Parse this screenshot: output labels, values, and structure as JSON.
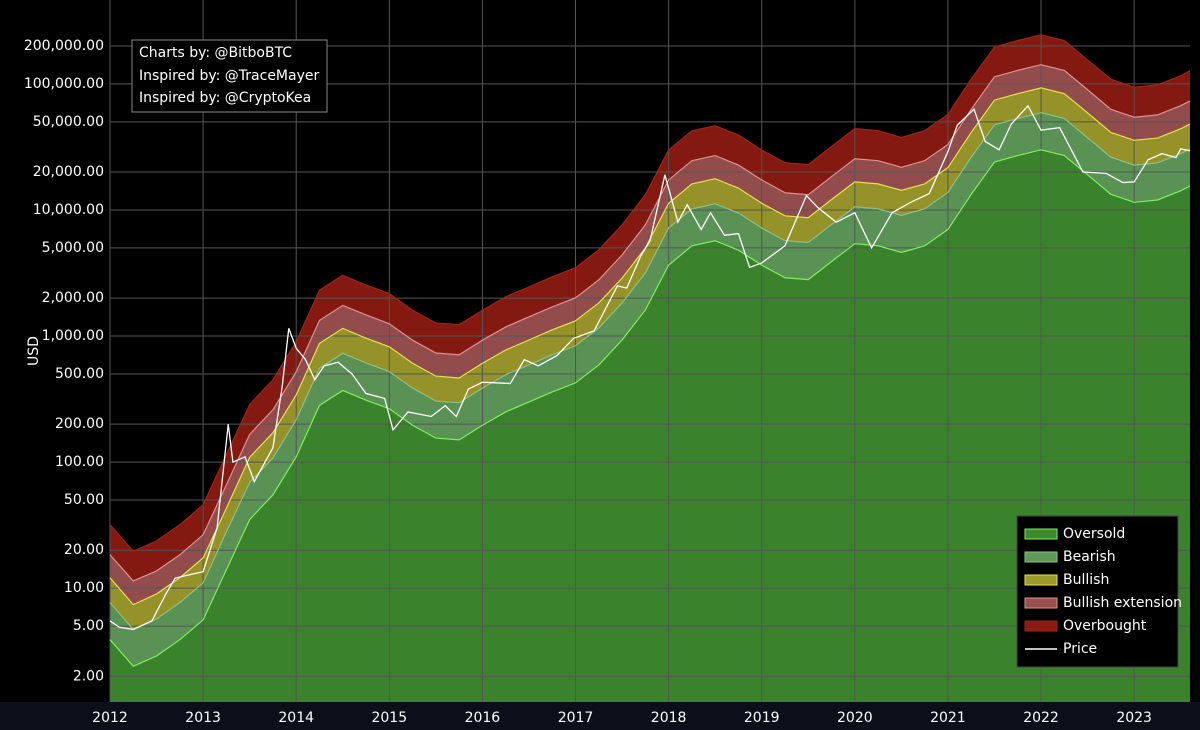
{
  "chart_data": {
    "type": "area",
    "ylabel": "USD",
    "annotations": [
      "Charts by: @BitboBTC",
      "Inspired by: @TraceMayer",
      "Inspired by: @CryptoKea"
    ],
    "log_scale": true,
    "grid": true,
    "legend": "bottom-right",
    "xlim": [
      2012,
      2023.6
    ],
    "xticks": [
      2012,
      2013,
      2014,
      2015,
      2016,
      2017,
      2018,
      2019,
      2020,
      2021,
      2022,
      2023
    ],
    "ylim": [
      1.25,
      463000
    ],
    "yticks": [
      {
        "value": 2,
        "label": "2.00"
      },
      {
        "value": 5,
        "label": "5.00"
      },
      {
        "value": 10,
        "label": "10.00"
      },
      {
        "value": 20,
        "label": "20.00"
      },
      {
        "value": 50,
        "label": "50.00"
      },
      {
        "value": 100,
        "label": "100.00"
      },
      {
        "value": 200,
        "label": "200.00"
      },
      {
        "value": 500,
        "label": "500.00"
      },
      {
        "value": 1000,
        "label": "1,000.00"
      },
      {
        "value": 2000,
        "label": "2,000.00"
      },
      {
        "value": 5000,
        "label": "5,000.00"
      },
      {
        "value": 10000,
        "label": "10,000.00"
      },
      {
        "value": 20000,
        "label": "20,000.00"
      },
      {
        "value": 50000,
        "label": "50,000.00"
      },
      {
        "value": 100000,
        "label": "100,000.00"
      },
      {
        "value": 200000,
        "label": "200,000.00"
      }
    ],
    "x": [
      2012,
      2012.25,
      2012.5,
      2012.75,
      2013,
      2013.25,
      2013.5,
      2013.75,
      2014,
      2014.25,
      2014.5,
      2014.75,
      2015,
      2015.25,
      2015.5,
      2015.75,
      2016,
      2016.25,
      2016.5,
      2016.75,
      2017,
      2017.25,
      2017.5,
      2017.75,
      2018,
      2018.25,
      2018.5,
      2018.75,
      2019,
      2019.25,
      2019.5,
      2019.75,
      2020,
      2020.25,
      2020.5,
      2020.75,
      2021,
      2021.25,
      2021.5,
      2021.75,
      2022,
      2022.25,
      2022.5,
      2022.75,
      2023,
      2023.25,
      2023.5,
      2023.6
    ],
    "series": [
      {
        "name": "Oversold",
        "color": "#3d8a2e",
        "line_color": "#7cf05c",
        "values": [
          3.9,
          2.4,
          2.9,
          3.9,
          5.6,
          14,
          35,
          55,
          110,
          282,
          370,
          310,
          265,
          196,
          155,
          150,
          196,
          250,
          300,
          360,
          425,
          590,
          930,
          1610,
          3650,
          5200,
          5700,
          4800,
          3650,
          2900,
          2800,
          3900,
          5400,
          5200,
          4600,
          5200,
          7000,
          13300,
          24000,
          27000,
          30000,
          27000,
          19000,
          13300,
          11500,
          12000,
          14200,
          15500
        ]
      },
      {
        "name": "Bearish",
        "color": "#5e9a58",
        "line_color": "#8fbf88",
        "values": [
          7.7,
          4.7,
          5.7,
          7.7,
          11,
          28,
          69,
          108,
          217,
          556,
          729,
          611,
          522,
          386,
          305,
          296,
          386,
          493,
          591,
          709,
          837,
          1160,
          1830,
          3170,
          7190,
          10200,
          11200,
          9460,
          7190,
          5710,
          5520,
          7680,
          10600,
          10200,
          9060,
          10200,
          13800,
          26200,
          47300,
          53200,
          59100,
          53200,
          37400,
          26200,
          22700,
          23600,
          28000,
          30500
        ]
      },
      {
        "name": "Bullish",
        "color": "#9c9a2a",
        "line_color": "#e8e050",
        "values": [
          12.1,
          7.4,
          9,
          12.1,
          17.4,
          43,
          109,
          171,
          341,
          874,
          1150,
          961,
          822,
          608,
          481,
          465,
          608,
          775,
          930,
          1120,
          1320,
          1830,
          2880,
          4990,
          11300,
          16100,
          17700,
          14900,
          11300,
          8990,
          8680,
          12100,
          16700,
          16100,
          14300,
          16100,
          21700,
          41200,
          74400,
          83700,
          93000,
          83700,
          58900,
          41200,
          35700,
          37200,
          44000,
          48100
        ]
      },
      {
        "name": "Bullish extension",
        "color": "#9a5050",
        "line_color": "#e09090",
        "values": [
          18.4,
          11.4,
          13.7,
          18.4,
          26.5,
          66,
          166,
          260,
          520,
          1330,
          1750,
          1470,
          1250,
          927,
          733,
          710,
          927,
          1180,
          1420,
          1700,
          2010,
          2790,
          4400,
          7620,
          17300,
          24600,
          27000,
          22700,
          17300,
          13700,
          13200,
          18400,
          25500,
          24600,
          21800,
          24600,
          33100,
          62900,
          114000,
          128000,
          142000,
          128000,
          89900,
          62900,
          54400,
          56800,
          67200,
          73300
        ]
      },
      {
        "name": "Overbought",
        "color": "#8b1a12",
        "line_color": "#a02418",
        "values": [
          31.9,
          19.6,
          23.7,
          31.9,
          45.8,
          115,
          286,
          450,
          900,
          2310,
          3030,
          2540,
          2170,
          1600,
          1270,
          1230,
          1600,
          2050,
          2450,
          2950,
          3480,
          4830,
          7610,
          13200,
          29900,
          42500,
          46600,
          39300,
          29900,
          23700,
          22900,
          31900,
          44200,
          42500,
          37600,
          42500,
          57300,
          109000,
          196000,
          221000,
          245000,
          221000,
          155000,
          109000,
          94100,
          98200,
          116000,
          127000
        ]
      },
      {
        "name": "Price",
        "color": "#ffffff",
        "x": [
          2012,
          2012.1,
          2012.25,
          2012.45,
          2012.6,
          2012.7,
          2012.9,
          2013,
          2013.15,
          2013.27,
          2013.32,
          2013.45,
          2013.55,
          2013.75,
          2013.85,
          2013.92,
          2014,
          2014.1,
          2014.2,
          2014.3,
          2014.45,
          2014.6,
          2014.75,
          2014.95,
          2015.04,
          2015.2,
          2015.45,
          2015.6,
          2015.72,
          2015.85,
          2016,
          2016.3,
          2016.45,
          2016.6,
          2016.8,
          2016.98,
          2017.2,
          2017.45,
          2017.55,
          2017.7,
          2017.8,
          2017.96,
          2018.1,
          2018.2,
          2018.35,
          2018.45,
          2018.6,
          2018.75,
          2018.87,
          2019,
          2019.25,
          2019.48,
          2019.6,
          2019.8,
          2020,
          2020.18,
          2020.4,
          2020.6,
          2020.8,
          2021,
          2021.1,
          2021.28,
          2021.4,
          2021.55,
          2021.68,
          2021.86,
          2022,
          2022.2,
          2022.45,
          2022.7,
          2022.88,
          2023,
          2023.15,
          2023.3,
          2023.45,
          2023.5,
          2023.6
        ],
        "values": [
          5.5,
          4.9,
          4.7,
          5.5,
          9,
          12,
          13,
          13.5,
          30,
          200,
          100,
          110,
          70,
          130,
          400,
          1150,
          800,
          650,
          450,
          580,
          620,
          500,
          350,
          320,
          180,
          250,
          230,
          280,
          230,
          380,
          430,
          420,
          650,
          580,
          700,
          960,
          1100,
          2500,
          2400,
          4300,
          5700,
          19000,
          8000,
          11000,
          7000,
          9500,
          6300,
          6500,
          3500,
          3800,
          5200,
          13000,
          10500,
          8000,
          9500,
          5000,
          9500,
          11500,
          13500,
          29000,
          47000,
          63000,
          35000,
          30000,
          48000,
          67000,
          43000,
          45000,
          20000,
          19500,
          16500,
          16700,
          25000,
          28000,
          26000,
          30500,
          29500
        ]
      }
    ]
  }
}
